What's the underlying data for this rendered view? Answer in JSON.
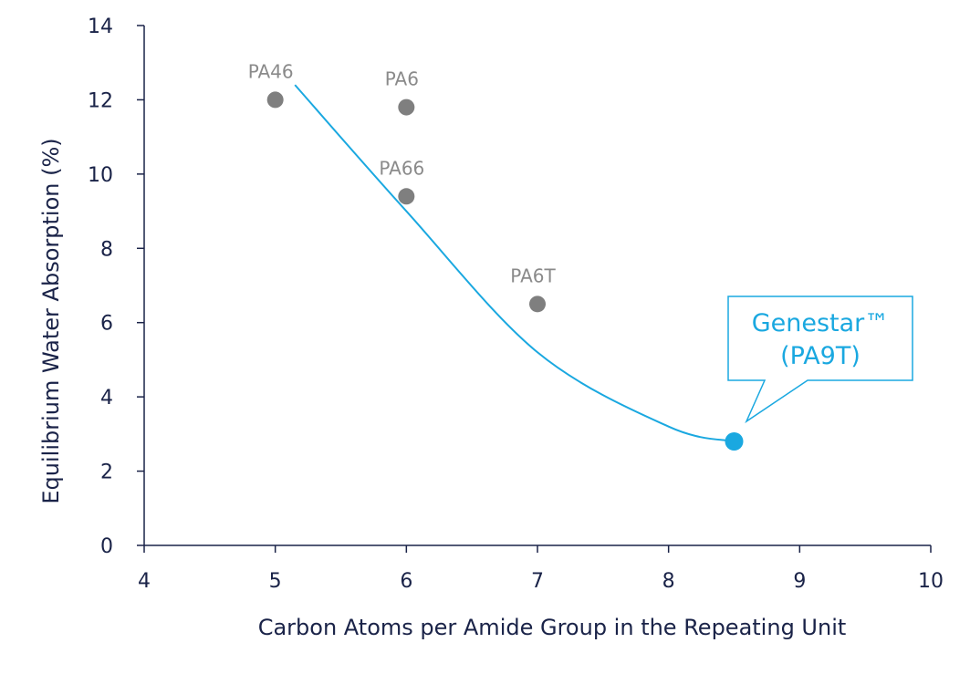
{
  "chart_data": {
    "type": "scatter",
    "xlabel": "Carbon Atoms per Amide Group in the Repeating Unit",
    "ylabel": "Equilibrium Water Absorption  (%)",
    "xlim": [
      4,
      10
    ],
    "ylim": [
      0,
      14
    ],
    "xticks": [
      4,
      5,
      6,
      7,
      8,
      9,
      10
    ],
    "yticks": [
      0,
      2,
      4,
      6,
      8,
      10,
      12,
      14
    ],
    "grid": false,
    "points": [
      {
        "label": "PA46",
        "x": 5,
        "y": 12.0
      },
      {
        "label": "PA6",
        "x": 6,
        "y": 11.8
      },
      {
        "label": "PA66",
        "x": 6,
        "y": 9.4
      },
      {
        "label": "PA6T",
        "x": 7,
        "y": 6.5
      }
    ],
    "highlight": {
      "label_line1": "Genestar™",
      "label_line2": "(PA9T)",
      "x": 8.5,
      "y": 2.8
    },
    "trend_curve": {
      "x": [
        5.15,
        6.0,
        7.0,
        8.0,
        8.5
      ],
      "y": [
        12.4,
        9.0,
        5.2,
        3.2,
        2.8
      ]
    },
    "colors": {
      "axis": "#1a2348",
      "point": "#7f7f7f",
      "label": "#8a8a8a",
      "accent": "#1aa8e0"
    }
  }
}
